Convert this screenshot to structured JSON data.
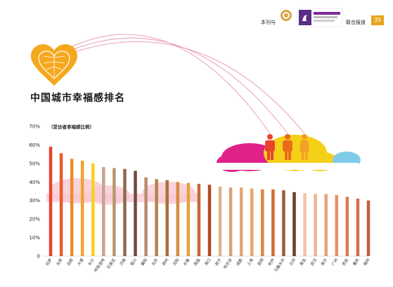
{
  "header": {
    "partner_left": "本刊与",
    "partner_right": "联合报道",
    "page_number": "35"
  },
  "illustration": {
    "top_cities": [
      "拉萨",
      "太原",
      "合肥"
    ]
  },
  "colors": {
    "accent_orange": "#e8a31f",
    "sky_pink": "#f6b3c4",
    "cloud_magenta": "#e0218a",
    "cloud_yellow": "#f5d019",
    "cloud_blue": "#7fcbe8"
  },
  "chart_data": {
    "type": "bar",
    "title": "中国城市幸福感排名",
    "ylabel": "（受访者幸福感比例）",
    "ylim": [
      0,
      70
    ],
    "yticks": [
      "0",
      "10%",
      "20%",
      "30%",
      "40%",
      "50%",
      "60%",
      "70%"
    ],
    "categories": [
      "拉萨",
      "太原",
      "合肥",
      "大理",
      "长沙",
      "呼和浩特",
      "石家庄",
      "济南",
      "银川",
      "襄阳",
      "北京",
      "郑州",
      "沈阳",
      "长春",
      "南昌",
      "海口",
      "西宁",
      "哈尔滨",
      "成都",
      "上海",
      "昆明",
      "杭州",
      "乌鲁木齐",
      "兰州",
      "青岛",
      "武汉",
      "南宁",
      "广州",
      "西安",
      "重庆",
      "福州"
    ],
    "values": [
      59,
      55.5,
      52.5,
      51.5,
      50,
      48,
      47.5,
      47,
      46,
      42.5,
      41.5,
      41,
      40,
      39.5,
      39,
      38.5,
      37.5,
      37,
      37,
      36.5,
      36,
      36,
      35.5,
      34.5,
      34,
      33.5,
      33.5,
      33,
      32,
      31,
      30
    ],
    "bar_colors": [
      "#e8432d",
      "#ea5a2b",
      "#f08a2c",
      "#f3a22e",
      "#f6d21a",
      "#c8a38f",
      "#b9956f",
      "#8f6a4a",
      "#6d4a3a",
      "#b98a6d",
      "#b5824f",
      "#a8703d",
      "#d98c3a",
      "#e4a23a",
      "#c56a2e",
      "#b04b24",
      "#d8b98a",
      "#d5a27a",
      "#e3a670",
      "#e9a868",
      "#dd8748",
      "#d06c35",
      "#9b5c37",
      "#6b3e2a",
      "#f2c3a5",
      "#efb690",
      "#eaa07a",
      "#e89066",
      "#df7a55",
      "#d86a4c",
      "#c65b3f"
    ]
  }
}
